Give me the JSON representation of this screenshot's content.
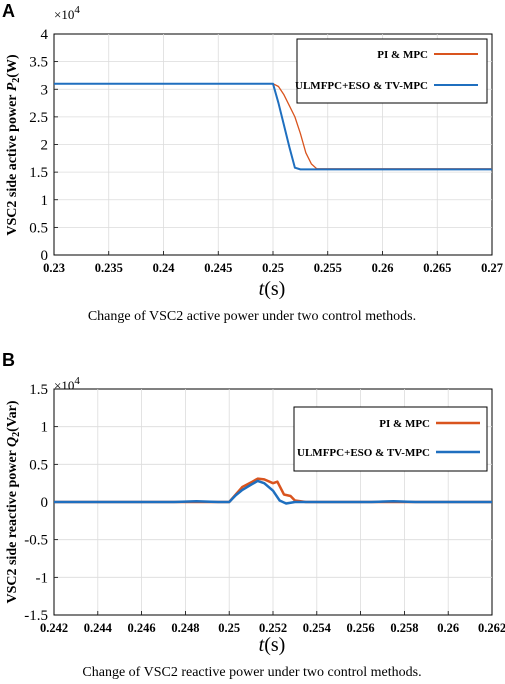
{
  "panels": [
    {
      "letter": "A",
      "caption": "Change of VSC2 active power under two control methods.",
      "multiplier_base": "×10",
      "multiplier_exp": "4",
      "ylabel_prefix": "VSC2 side active power ",
      "ylabel_var": "P",
      "ylabel_sub": "2",
      "ylabel_unit": "(W)",
      "xlabel_var": "t",
      "xlabel_unit": "(s)"
    },
    {
      "letter": "B",
      "caption": "Change of VSC2 reactive power under two control methods.",
      "multiplier_base": "×10",
      "multiplier_exp": "4",
      "ylabel_prefix": "VSC2 side reactive power ",
      "ylabel_var": "Q",
      "ylabel_sub": "2",
      "ylabel_unit": "(Var)",
      "xlabel_var": "t",
      "xlabel_unit": "(s)"
    }
  ],
  "chart_data": [
    {
      "type": "line",
      "xlabel": "t(s)",
      "ylabel": "VSC2 side active power P2(W)",
      "y_multiplier": "×10^4",
      "xlim": [
        0.23,
        0.27
      ],
      "ylim": [
        0,
        4
      ],
      "xticks": [
        "0.23",
        "0.235",
        "0.24",
        "0.245",
        "0.25",
        "0.255",
        "0.26",
        "0.265",
        "0.27"
      ],
      "yticks": [
        "0",
        "0.5",
        "1",
        "1.5",
        "2",
        "2.5",
        "3",
        "3.5",
        "4"
      ],
      "grid": true,
      "legend_position": "top-right",
      "series": [
        {
          "name": "PI & MPC",
          "color": "#d9541e",
          "points": [
            [
              0.23,
              3.1
            ],
            [
              0.25,
              3.1
            ],
            [
              0.2505,
              3.05
            ],
            [
              0.251,
              2.9
            ],
            [
              0.2515,
              2.7
            ],
            [
              0.252,
              2.5
            ],
            [
              0.2525,
              2.2
            ],
            [
              0.253,
              1.85
            ],
            [
              0.2535,
              1.65
            ],
            [
              0.254,
              1.56
            ],
            [
              0.27,
              1.56
            ]
          ]
        },
        {
          "name": "ULMFPC+ESO & TV-MPC",
          "color": "#1f6fbf",
          "points": [
            [
              0.23,
              3.1
            ],
            [
              0.25,
              3.1
            ],
            [
              0.2505,
              2.75
            ],
            [
              0.251,
              2.35
            ],
            [
              0.2515,
              1.95
            ],
            [
              0.252,
              1.58
            ],
            [
              0.2525,
              1.55
            ],
            [
              0.27,
              1.55
            ]
          ]
        }
      ]
    },
    {
      "type": "line",
      "xlabel": "t(s)",
      "ylabel": "VSC2 side reactive power Q2(Var)",
      "y_multiplier": "×10^4",
      "xlim": [
        0.242,
        0.262
      ],
      "ylim": [
        -1.5,
        1.5
      ],
      "xticks": [
        "0.242",
        "0.244",
        "0.246",
        "0.248",
        "0.25",
        "0.252",
        "0.254",
        "0.256",
        "0.258",
        "0.26",
        "0.262"
      ],
      "yticks": [
        "-1.5",
        "-1",
        "-0.5",
        "0",
        "0.5",
        "1",
        "1.5"
      ],
      "grid": true,
      "legend_position": "top-right",
      "series": [
        {
          "name": "PI & MPC",
          "color": "#d9541e",
          "points": [
            [
              0.242,
              0.0
            ],
            [
              0.25,
              0.0
            ],
            [
              0.2503,
              0.1
            ],
            [
              0.2506,
              0.2
            ],
            [
              0.251,
              0.26
            ],
            [
              0.2513,
              0.31
            ],
            [
              0.2516,
              0.3
            ],
            [
              0.252,
              0.25
            ],
            [
              0.2522,
              0.27
            ],
            [
              0.2525,
              0.1
            ],
            [
              0.2528,
              0.08
            ],
            [
              0.253,
              0.02
            ],
            [
              0.2535,
              0.0
            ],
            [
              0.262,
              0.0
            ]
          ]
        },
        {
          "name": "ULMFPC+ESO & TV-MPC",
          "color": "#1f6fbf",
          "points": [
            [
              0.242,
              0.0
            ],
            [
              0.2475,
              0.0
            ],
            [
              0.2485,
              0.01
            ],
            [
              0.2495,
              0.0
            ],
            [
              0.25,
              0.0
            ],
            [
              0.2503,
              0.09
            ],
            [
              0.2506,
              0.16
            ],
            [
              0.251,
              0.23
            ],
            [
              0.2513,
              0.28
            ],
            [
              0.2516,
              0.25
            ],
            [
              0.252,
              0.15
            ],
            [
              0.2523,
              0.02
            ],
            [
              0.2526,
              -0.02
            ],
            [
              0.253,
              0.0
            ],
            [
              0.2565,
              0.0
            ],
            [
              0.2575,
              0.01
            ],
            [
              0.2585,
              0.0
            ],
            [
              0.262,
              0.0
            ]
          ]
        }
      ]
    }
  ]
}
